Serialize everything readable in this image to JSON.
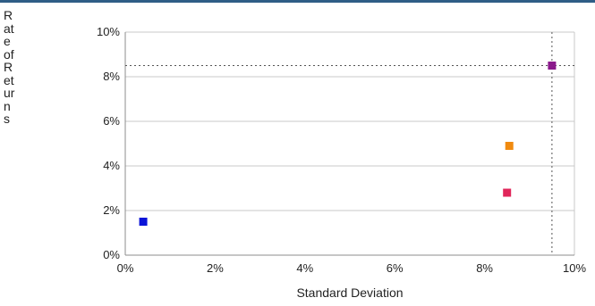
{
  "chart_data": {
    "type": "scatter",
    "xlabel": "Standard Deviation",
    "ylabel": "Rate of Returns",
    "xlim": [
      0,
      10
    ],
    "ylim": [
      0,
      10
    ],
    "x_ticks": [
      "0%",
      "2%",
      "4%",
      "6%",
      "8%",
      "10%"
    ],
    "y_ticks": [
      "0%",
      "2%",
      "4%",
      "6%",
      "8%",
      "10%"
    ],
    "grid": "horizontal",
    "legend": "none",
    "points": [
      {
        "x": 0.4,
        "y": 1.5,
        "color": "#0a14d8"
      },
      {
        "x": 8.5,
        "y": 2.8,
        "color": "#e0265a"
      },
      {
        "x": 8.55,
        "y": 4.9,
        "color": "#f08a10"
      },
      {
        "x": 9.5,
        "y": 8.5,
        "color": "#8b1a8c"
      }
    ],
    "crosshair": {
      "x": 9.5,
      "y": 8.5
    }
  }
}
